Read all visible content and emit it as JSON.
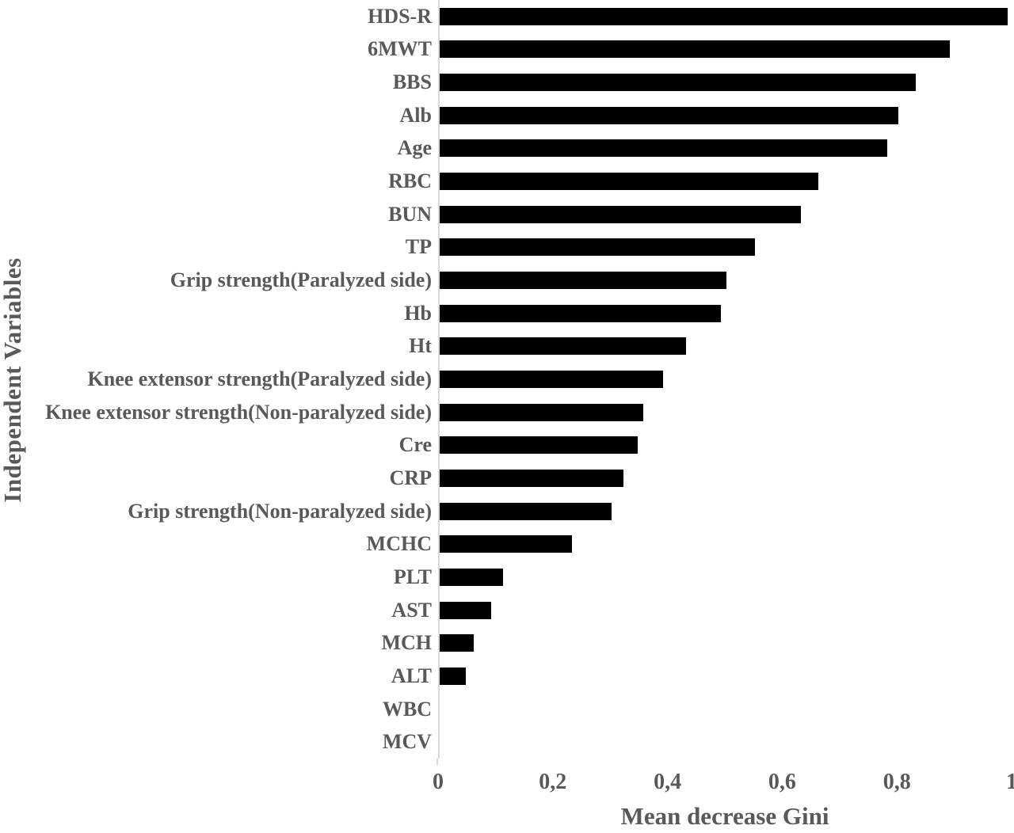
{
  "chart_data": {
    "type": "bar",
    "orientation": "horizontal",
    "xlabel": "Mean decrease Gini",
    "ylabel": "Independent Variables",
    "xlim": [
      0,
      1
    ],
    "grid": false,
    "legend": false,
    "decimal_separator": "comma",
    "bar_color": "#000000",
    "text_color": "#595959",
    "axis_line_color": "#d9d9d9",
    "x_ticks": [
      {
        "label": "0",
        "value": 0
      },
      {
        "label": "0,2",
        "value": 0.2
      },
      {
        "label": "0,4",
        "value": 0.4
      },
      {
        "label": "0,6",
        "value": 0.6
      },
      {
        "label": "0,8",
        "value": 0.8
      },
      {
        "label": "1",
        "value": 1
      }
    ],
    "categories": [
      "HDS-R",
      "6MWT",
      "BBS",
      "Alb",
      "Age",
      "RBC",
      "BUN",
      "TP",
      "Grip strength(Paralyzed side)",
      "Hb",
      "Ht",
      "Knee extensor strength(Paralyzed side)",
      "Knee extensor strength(Non-paralyzed side)",
      "Cre",
      "CRP",
      "Grip strength(Non-paralyzed side)",
      "MCHC",
      "PLT",
      "AST",
      "MCH",
      "ALT",
      "WBC",
      "MCV"
    ],
    "values": [
      0.99,
      0.89,
      0.83,
      0.8,
      0.78,
      0.66,
      0.63,
      0.55,
      0.5,
      0.49,
      0.43,
      0.39,
      0.355,
      0.345,
      0.32,
      0.3,
      0.23,
      0.11,
      0.09,
      0.06,
      0.045,
      0,
      0
    ]
  }
}
